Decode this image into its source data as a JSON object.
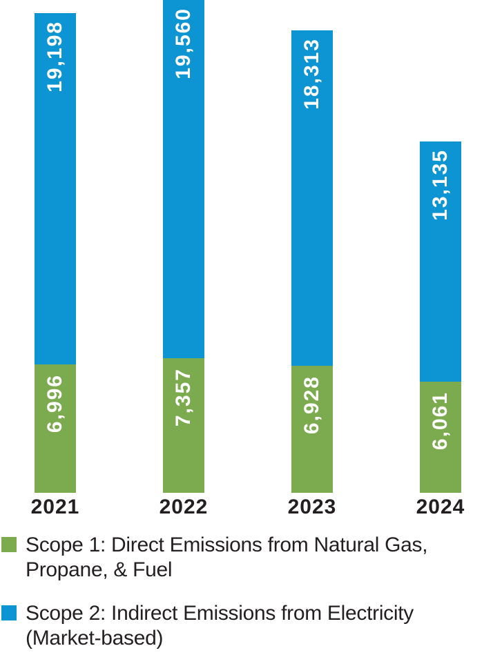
{
  "chart_data": {
    "type": "bar",
    "stacked": true,
    "orientation": "vertical",
    "grid": false,
    "axes_hidden": true,
    "legend_position": "bottom",
    "categories": [
      "2021",
      "2022",
      "2023",
      "2024"
    ],
    "series": [
      {
        "key": "scope1",
        "name": "Scope 1: Direct Emissions from Natural Gas, Propane, & Fuel",
        "color": "#7cab4f",
        "stack_position": "bottom",
        "values": [
          6996,
          7357,
          6928,
          6061
        ],
        "labels": [
          "6,996",
          "7,357",
          "6,928",
          "6,061"
        ]
      },
      {
        "key": "scope2",
        "name": "Scope 2: Indirect Emissions from Electricity (Market-based)",
        "color": "#0d94d3",
        "stack_position": "top",
        "values": [
          19198,
          19560,
          18313,
          13135
        ],
        "labels": [
          "19,198",
          "19,560",
          "18,313",
          "13,135"
        ]
      }
    ],
    "value_label_style": "white, rotated 90deg, inside top of each segment"
  },
  "legend": {
    "items": [
      {
        "key": "scope1",
        "color": "#7cab4f",
        "lines": [
          "Scope 1: Direct Emissions from Natural Gas,",
          "Propane, & Fuel"
        ]
      },
      {
        "key": "scope2",
        "color": "#0d94d3",
        "lines": [
          "Scope 2: Indirect Emissions from Electricity",
          "(Market-based)"
        ]
      }
    ]
  },
  "colors": {
    "scope1_green": "#7cab4f",
    "scope2_blue": "#0d94d3",
    "value_text": "#ffffff",
    "axis_text": "#231f20",
    "background": "#ffffff"
  }
}
